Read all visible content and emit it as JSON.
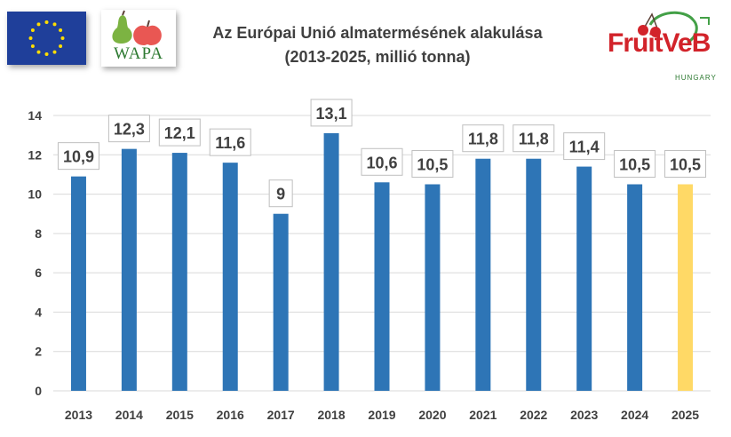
{
  "header": {
    "title_line1": "Az Európai Unió almatermésének alakulása",
    "title_line2": "(2013-2025, millió tonna)",
    "logos": {
      "eu_flag": "eu-flag",
      "wapa": "WAPA",
      "fruitveb": "FruitVeB",
      "fruitveb_sub": "HUNGARY"
    }
  },
  "colors": {
    "bar": "#2e75b6",
    "bar_highlight": "#ffd966",
    "grid": "#d9d9d9",
    "label_text": "#404040",
    "label_border": "#bfbfbf"
  },
  "chart_data": {
    "type": "bar",
    "categories": [
      "2013",
      "2014",
      "2015",
      "2016",
      "2017",
      "2018",
      "2019",
      "2020",
      "2021",
      "2022",
      "2023",
      "2024",
      "2025"
    ],
    "values": [
      10.9,
      12.3,
      12.1,
      11.6,
      9,
      13.1,
      10.6,
      10.5,
      11.8,
      11.8,
      11.4,
      10.5,
      10.5
    ],
    "value_labels": [
      "10,9",
      "12,3",
      "12,1",
      "11,6",
      "9",
      "13,1",
      "10,6",
      "10,5",
      "11,8",
      "11,8",
      "11,4",
      "10,5",
      "10,5"
    ],
    "highlight_index": 12,
    "title": "Az Európai Unió almatermésének alakulása (2013-2025, millió tonna)",
    "xlabel": "",
    "ylabel": "",
    "ylim": [
      0,
      14
    ],
    "yticks": [
      0,
      2,
      4,
      6,
      8,
      10,
      12,
      14
    ],
    "grid": true,
    "legend": "none"
  }
}
